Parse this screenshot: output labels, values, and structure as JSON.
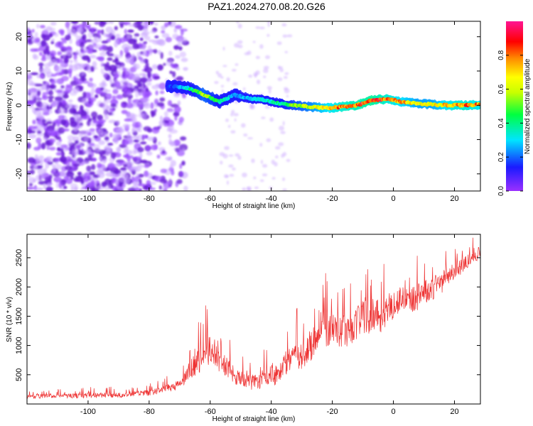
{
  "title": "PAZ1.2024.270.08.20.G26",
  "chart_data": [
    {
      "type": "heatmap",
      "xlabel": "Height of straight line (km)",
      "ylabel": "Frequency (Hz)",
      "xlim": [
        -120,
        28.5
      ],
      "ylim": [
        -25,
        24.5
      ],
      "xticks": [
        -100,
        -80,
        -60,
        -40,
        -20,
        0,
        20
      ],
      "yticks": [
        -20,
        -10,
        0,
        10,
        20
      ],
      "colorbar": {
        "label": "Normalized spectral amplitude",
        "range": [
          0,
          1
        ],
        "ticks": [
          0.0,
          0.2,
          0.4,
          0.6,
          0.8
        ],
        "colormap": [
          "#9b30ff",
          "#1a1aff",
          "#00e5ff",
          "#00ff40",
          "#c8ff00",
          "#ffff00",
          "#ff8c00",
          "#ff0000",
          "#ff1493"
        ]
      },
      "ridge": {
        "x": [
          -72,
          -67,
          -62,
          -57,
          -52,
          -47,
          -42,
          -37,
          -32,
          -27,
          -22,
          -17,
          -12,
          -7,
          -2,
          3,
          8,
          13,
          18,
          23,
          28
        ],
        "frequency": [
          5.5,
          5.0,
          3.0,
          1.0,
          3.0,
          2.0,
          1.5,
          0.5,
          0.0,
          -0.5,
          -0.8,
          -0.5,
          0.0,
          1.5,
          1.8,
          1.0,
          0.5,
          0.2,
          0.0,
          0.0,
          0.2
        ],
        "amplitude": [
          0.15,
          0.3,
          0.5,
          0.35,
          0.2,
          0.25,
          0.3,
          0.35,
          0.45,
          0.55,
          0.7,
          0.8,
          0.85,
          0.9,
          0.8,
          0.7,
          0.6,
          0.6,
          0.75,
          0.8,
          0.75
        ]
      }
    },
    {
      "type": "line",
      "xlabel": "Height of straight line (km)",
      "ylabel": "SNR (10 * v/v)",
      "xlim": [
        -120,
        28.5
      ],
      "ylim": [
        0,
        2900
      ],
      "xticks": [
        -100,
        -80,
        -60,
        -40,
        -20,
        0,
        20
      ],
      "yticks": [
        500,
        1000,
        1500,
        2000,
        2500
      ],
      "color": "#ee3333",
      "series": [
        {
          "x": [
            -120,
            -110,
            -100,
            -90,
            -80,
            -75,
            -70,
            -67,
            -64,
            -62,
            -60,
            -58,
            -56,
            -54,
            -52,
            -50,
            -48,
            -46,
            -44,
            -42,
            -40,
            -38,
            -36,
            -34,
            -32,
            -30,
            -28,
            -26,
            -24,
            -22,
            -20,
            -18,
            -16,
            -14,
            -12,
            -10,
            -8,
            -6,
            -4,
            -2,
            0,
            2,
            4,
            6,
            8,
            10,
            12,
            14,
            16,
            18,
            20,
            22,
            24,
            26,
            28
          ],
          "mean": [
            130,
            140,
            150,
            160,
            190,
            260,
            330,
            550,
            750,
            900,
            950,
            850,
            700,
            600,
            500,
            450,
            400,
            380,
            400,
            500,
            550,
            500,
            650,
            800,
            900,
            850,
            950,
            1100,
            1400,
            1300,
            1350,
            1300,
            1250,
            1300,
            1400,
            1550,
            1500,
            1600,
            1500,
            1650,
            1700,
            1750,
            1900,
            1800,
            1850,
            1950,
            1900,
            2050,
            2100,
            2200,
            2300,
            2350,
            2450,
            2500,
            2600
          ],
          "spread": [
            60,
            60,
            70,
            70,
            80,
            100,
            130,
            250,
            350,
            400,
            450,
            350,
            300,
            280,
            250,
            220,
            200,
            200,
            220,
            250,
            300,
            280,
            320,
            380,
            420,
            400,
            420,
            450,
            500,
            480,
            480,
            450,
            420,
            420,
            450,
            500,
            480,
            450,
            420,
            420,
            400,
            380,
            380,
            350,
            350,
            330,
            320,
            300,
            280,
            260,
            240,
            220,
            200,
            180,
            160
          ]
        }
      ]
    }
  ]
}
